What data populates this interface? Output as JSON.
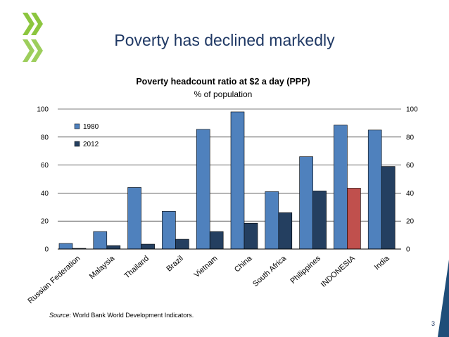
{
  "slide": {
    "title": "Poverty has declined markedly",
    "source_label": "Source",
    "source_text": ": World Bank World Development Indicators.",
    "page_number": "3"
  },
  "colors": {
    "series_1980": "#4f81bd",
    "series_2012": "#243f60",
    "highlight": "#c0504d",
    "title": "#1f3864",
    "logo": "#8cc63f",
    "corner": "#1f4e79"
  },
  "chart_data": {
    "type": "bar",
    "title": "Poverty headcount ratio at $2 a day (PPP)",
    "subtitle": "% of population",
    "categories": [
      "Russian Federation",
      "Malaysia",
      "Thailand",
      "Brazil",
      "Vietnam",
      "China",
      "South Africa",
      "Philippines",
      "INDONESIA",
      "India"
    ],
    "series": [
      {
        "name": "1980",
        "values": [
          4,
          12.5,
          44,
          27,
          85.5,
          98,
          41,
          66,
          88.5,
          85
        ]
      },
      {
        "name": "2012",
        "values": [
          0.5,
          2.5,
          3.5,
          7,
          12.5,
          18.5,
          26,
          41.5,
          43.5,
          59
        ]
      }
    ],
    "highlight": {
      "category": "INDONESIA",
      "series": "2012"
    },
    "ylim": [
      0,
      100
    ],
    "yticks": [
      0,
      20,
      40,
      60,
      80,
      100
    ],
    "secondary_yticks": [
      0,
      20,
      40,
      60,
      80,
      100
    ],
    "legend": {
      "placement": "top-left",
      "entries": [
        "1980",
        "2012"
      ]
    }
  }
}
